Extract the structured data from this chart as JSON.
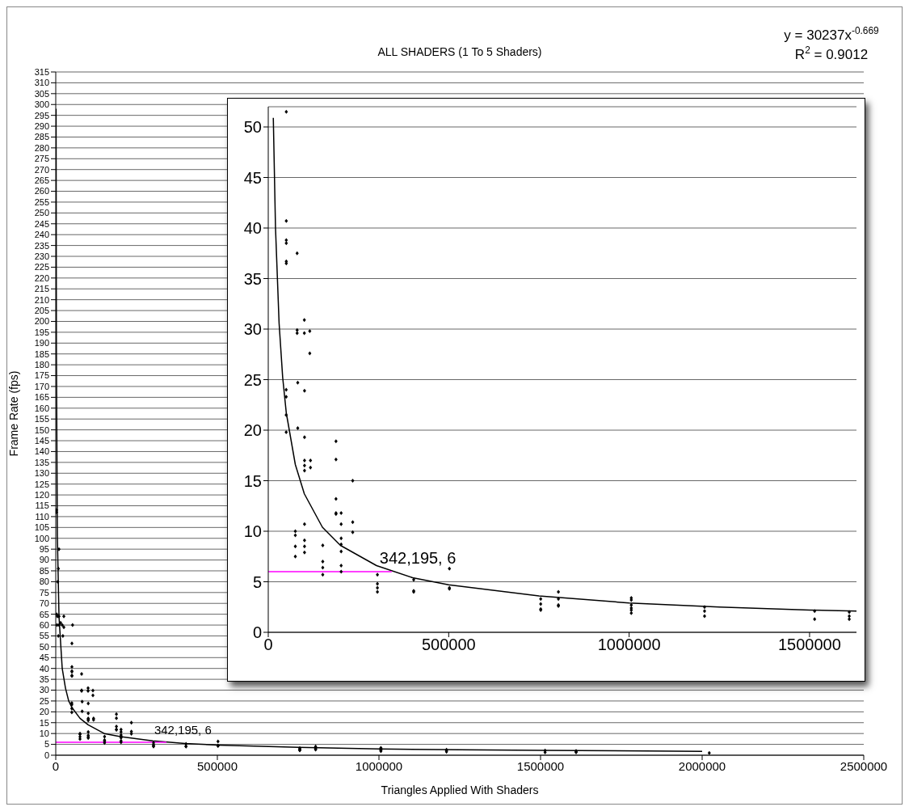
{
  "chart_data": [
    {
      "type": "scatter",
      "title": "ALL SHADERS (1 To 5 Shaders)",
      "xlabel": "Triangles Applied With Shaders",
      "ylabel": "Frame Rate (fps)",
      "xlim": [
        0,
        2500000
      ],
      "xticks": [
        0,
        500000,
        1000000,
        1500000,
        2000000,
        2500000
      ],
      "ylim": [
        0,
        315
      ],
      "yticks": [
        0,
        5,
        10,
        15,
        20,
        25,
        30,
        35,
        40,
        45,
        50,
        55,
        60,
        65,
        70,
        75,
        80,
        85,
        90,
        95,
        100,
        105,
        110,
        115,
        120,
        125,
        130,
        135,
        140,
        145,
        150,
        155,
        160,
        165,
        170,
        175,
        180,
        185,
        190,
        195,
        200,
        205,
        210,
        215,
        220,
        225,
        230,
        235,
        240,
        245,
        250,
        255,
        260,
        265,
        270,
        275,
        280,
        285,
        290,
        295,
        300,
        305,
        310,
        315
      ],
      "grid": "y",
      "legend": false,
      "annotations": [
        "y = 30237x$^{-0.669}$",
        "R$^{2}$ = 0.9012",
        {
          "text": "342,195, 6",
          "x": 342195,
          "y": 6
        }
      ],
      "series": [
        {
          "marker": "diamond",
          "color": "#000000",
          "x": [
            2500,
            2500,
            10000,
            8000,
            6000,
            3000,
            5000,
            10000,
            25000,
            4000,
            10000,
            15000,
            20000,
            25000,
            52000,
            8000,
            22000,
            50000,
            50000,
            50000,
            50000,
            50000,
            50000,
            80000,
            80000,
            80000,
            100000,
            100000,
            115000,
            115000,
            49700,
            49700,
            49700,
            49700,
            81700,
            81700,
            75000,
            75000,
            75000,
            75000,
            100500,
            100500,
            100500,
            100500,
            100500,
            100500,
            100500,
            100500,
            100500,
            117000,
            117000,
            151000,
            151000,
            151000,
            151000,
            187700,
            187700,
            187700,
            187700,
            187700,
            202000,
            202000,
            202000,
            202000,
            202000,
            202000,
            202000,
            234000,
            234000,
            234000,
            302500,
            302500,
            302500,
            302500,
            403000,
            403000,
            403000,
            502000,
            502000,
            502000,
            755000,
            755000,
            755000,
            755000,
            804000,
            804000,
            804000,
            804000,
            1006000,
            1006000,
            1006000,
            1006000,
            1006000,
            1209000,
            1209000,
            1209000,
            1514000,
            1514000,
            1610000,
            1610000,
            1610000,
            2022000
          ],
          "values": [
            112,
            113,
            95,
            86,
            80,
            65,
            64,
            64,
            64,
            60,
            60,
            61,
            60,
            59,
            60,
            55,
            55,
            51.5,
            40.7,
            38.8,
            38.5,
            36.7,
            36.5,
            37.5,
            29.9,
            29.6,
            30.9,
            29.6,
            29.8,
            27.6,
            24,
            23.3,
            21.5,
            19.8,
            24.7,
            20.2,
            10,
            9.6,
            8.5,
            7.5,
            23.9,
            19.3,
            17,
            16.5,
            16,
            10.7,
            9.1,
            8.5,
            7.9,
            17,
            16.3,
            8.6,
            7,
            6.4,
            5.7,
            18.9,
            17.1,
            13.2,
            11.8,
            11.7,
            11.8,
            10.7,
            9.3,
            8.7,
            8,
            6.6,
            6,
            15,
            10.9,
            9.9,
            5.7,
            4.8,
            4.4,
            4,
            5.2,
            4.1,
            4,
            6.3,
            4.4,
            4.3,
            3.3,
            2.8,
            2.3,
            2.2,
            4,
            3.3,
            2.7,
            2.6,
            3.4,
            3.2,
            2.4,
            2.2,
            1.9,
            2.5,
            2.1,
            1.6,
            2.1,
            1.3,
            2,
            1.6,
            1.3,
            1
          ]
        },
        {
          "type": "line",
          "color": "#000000",
          "x": [
            1000,
            2000,
            5000,
            10000,
            20000,
            30000,
            40000,
            50000,
            75000,
            100000,
            150000,
            200000,
            300000,
            400000,
            500000,
            750000,
            1000000,
            1250000,
            1500000,
            2000000
          ],
          "values": [
            298,
            187,
            101,
            64,
            40,
            31,
            25,
            22,
            17,
            14,
            10,
            8.6,
            6.6,
            5.4,
            4.7,
            3.6,
            2.9,
            2.5,
            2.2,
            1.8
          ]
        },
        {
          "type": "line",
          "color": "#ff00ff",
          "x": [
            0,
            342195
          ],
          "values": [
            6,
            6
          ]
        }
      ]
    },
    {
      "type": "scatter",
      "xlim": [
        0,
        1630000
      ],
      "xticks": [
        0,
        500000,
        1000000,
        1500000
      ],
      "ylim": [
        0,
        52
      ],
      "yticks": [
        0,
        5,
        10,
        15,
        20,
        25,
        30,
        35,
        40,
        45,
        50
      ],
      "grid": "y",
      "legend": false,
      "annotations": [
        {
          "text": "342,195, 6",
          "x": 342195,
          "y": 6
        }
      ],
      "series": [
        {
          "marker": "diamond",
          "color": "#000000",
          "x": [
            50000,
            50000,
            50000,
            50000,
            50000,
            50000,
            80000,
            80000,
            80000,
            100000,
            100000,
            115000,
            115000,
            49700,
            49700,
            49700,
            49700,
            81700,
            81700,
            75000,
            75000,
            75000,
            75000,
            100500,
            100500,
            100500,
            100500,
            100500,
            100500,
            100500,
            100500,
            100500,
            117000,
            117000,
            151000,
            151000,
            151000,
            151000,
            187700,
            187700,
            187700,
            187700,
            187700,
            202000,
            202000,
            202000,
            202000,
            202000,
            202000,
            202000,
            234000,
            234000,
            234000,
            302500,
            302500,
            302500,
            302500,
            403000,
            403000,
            403000,
            502000,
            502000,
            502000,
            755000,
            755000,
            755000,
            755000,
            804000,
            804000,
            804000,
            804000,
            1006000,
            1006000,
            1006000,
            1006000,
            1006000,
            1006000,
            1209000,
            1209000,
            1209000,
            1514000,
            1514000,
            1610000,
            1610000,
            1610000
          ],
          "values": [
            51.5,
            40.7,
            38.8,
            38.5,
            36.7,
            36.5,
            37.5,
            29.9,
            29.6,
            30.9,
            29.6,
            29.8,
            27.6,
            24,
            23.3,
            21.5,
            19.8,
            24.7,
            20.2,
            10,
            9.6,
            8.5,
            7.5,
            23.9,
            19.3,
            17,
            16.5,
            16,
            10.7,
            9.1,
            8.5,
            7.9,
            17,
            16.3,
            8.6,
            7,
            6.4,
            5.7,
            18.9,
            17.1,
            13.2,
            11.8,
            11.7,
            11.8,
            10.7,
            9.3,
            8.7,
            8,
            6.6,
            6,
            15,
            10.9,
            9.9,
            5.7,
            4.8,
            4.4,
            4,
            5.2,
            4.1,
            4,
            6.3,
            4.4,
            4.3,
            3.3,
            2.8,
            2.3,
            2.2,
            4,
            3.3,
            2.7,
            2.6,
            3.4,
            3.2,
            2.7,
            2.4,
            2.2,
            1.9,
            2.5,
            2.1,
            1.6,
            2.1,
            1.3,
            2,
            1.6,
            1.3
          ]
        },
        {
          "type": "line",
          "color": "#000000",
          "x": [
            14000,
            20000,
            30000,
            40000,
            50000,
            75000,
            100000,
            150000,
            200000,
            300000,
            400000,
            500000,
            750000,
            1000000,
            1250000,
            1500000,
            1630000
          ],
          "values": [
            50.9,
            40.1,
            30.6,
            25.2,
            21.7,
            16.6,
            13.7,
            10.4,
            8.6,
            6.6,
            5.4,
            4.7,
            3.6,
            2.9,
            2.5,
            2.2,
            2.1
          ]
        },
        {
          "type": "line",
          "color": "#ff00ff",
          "x": [
            0,
            342195
          ],
          "values": [
            6,
            6
          ]
        }
      ]
    }
  ]
}
